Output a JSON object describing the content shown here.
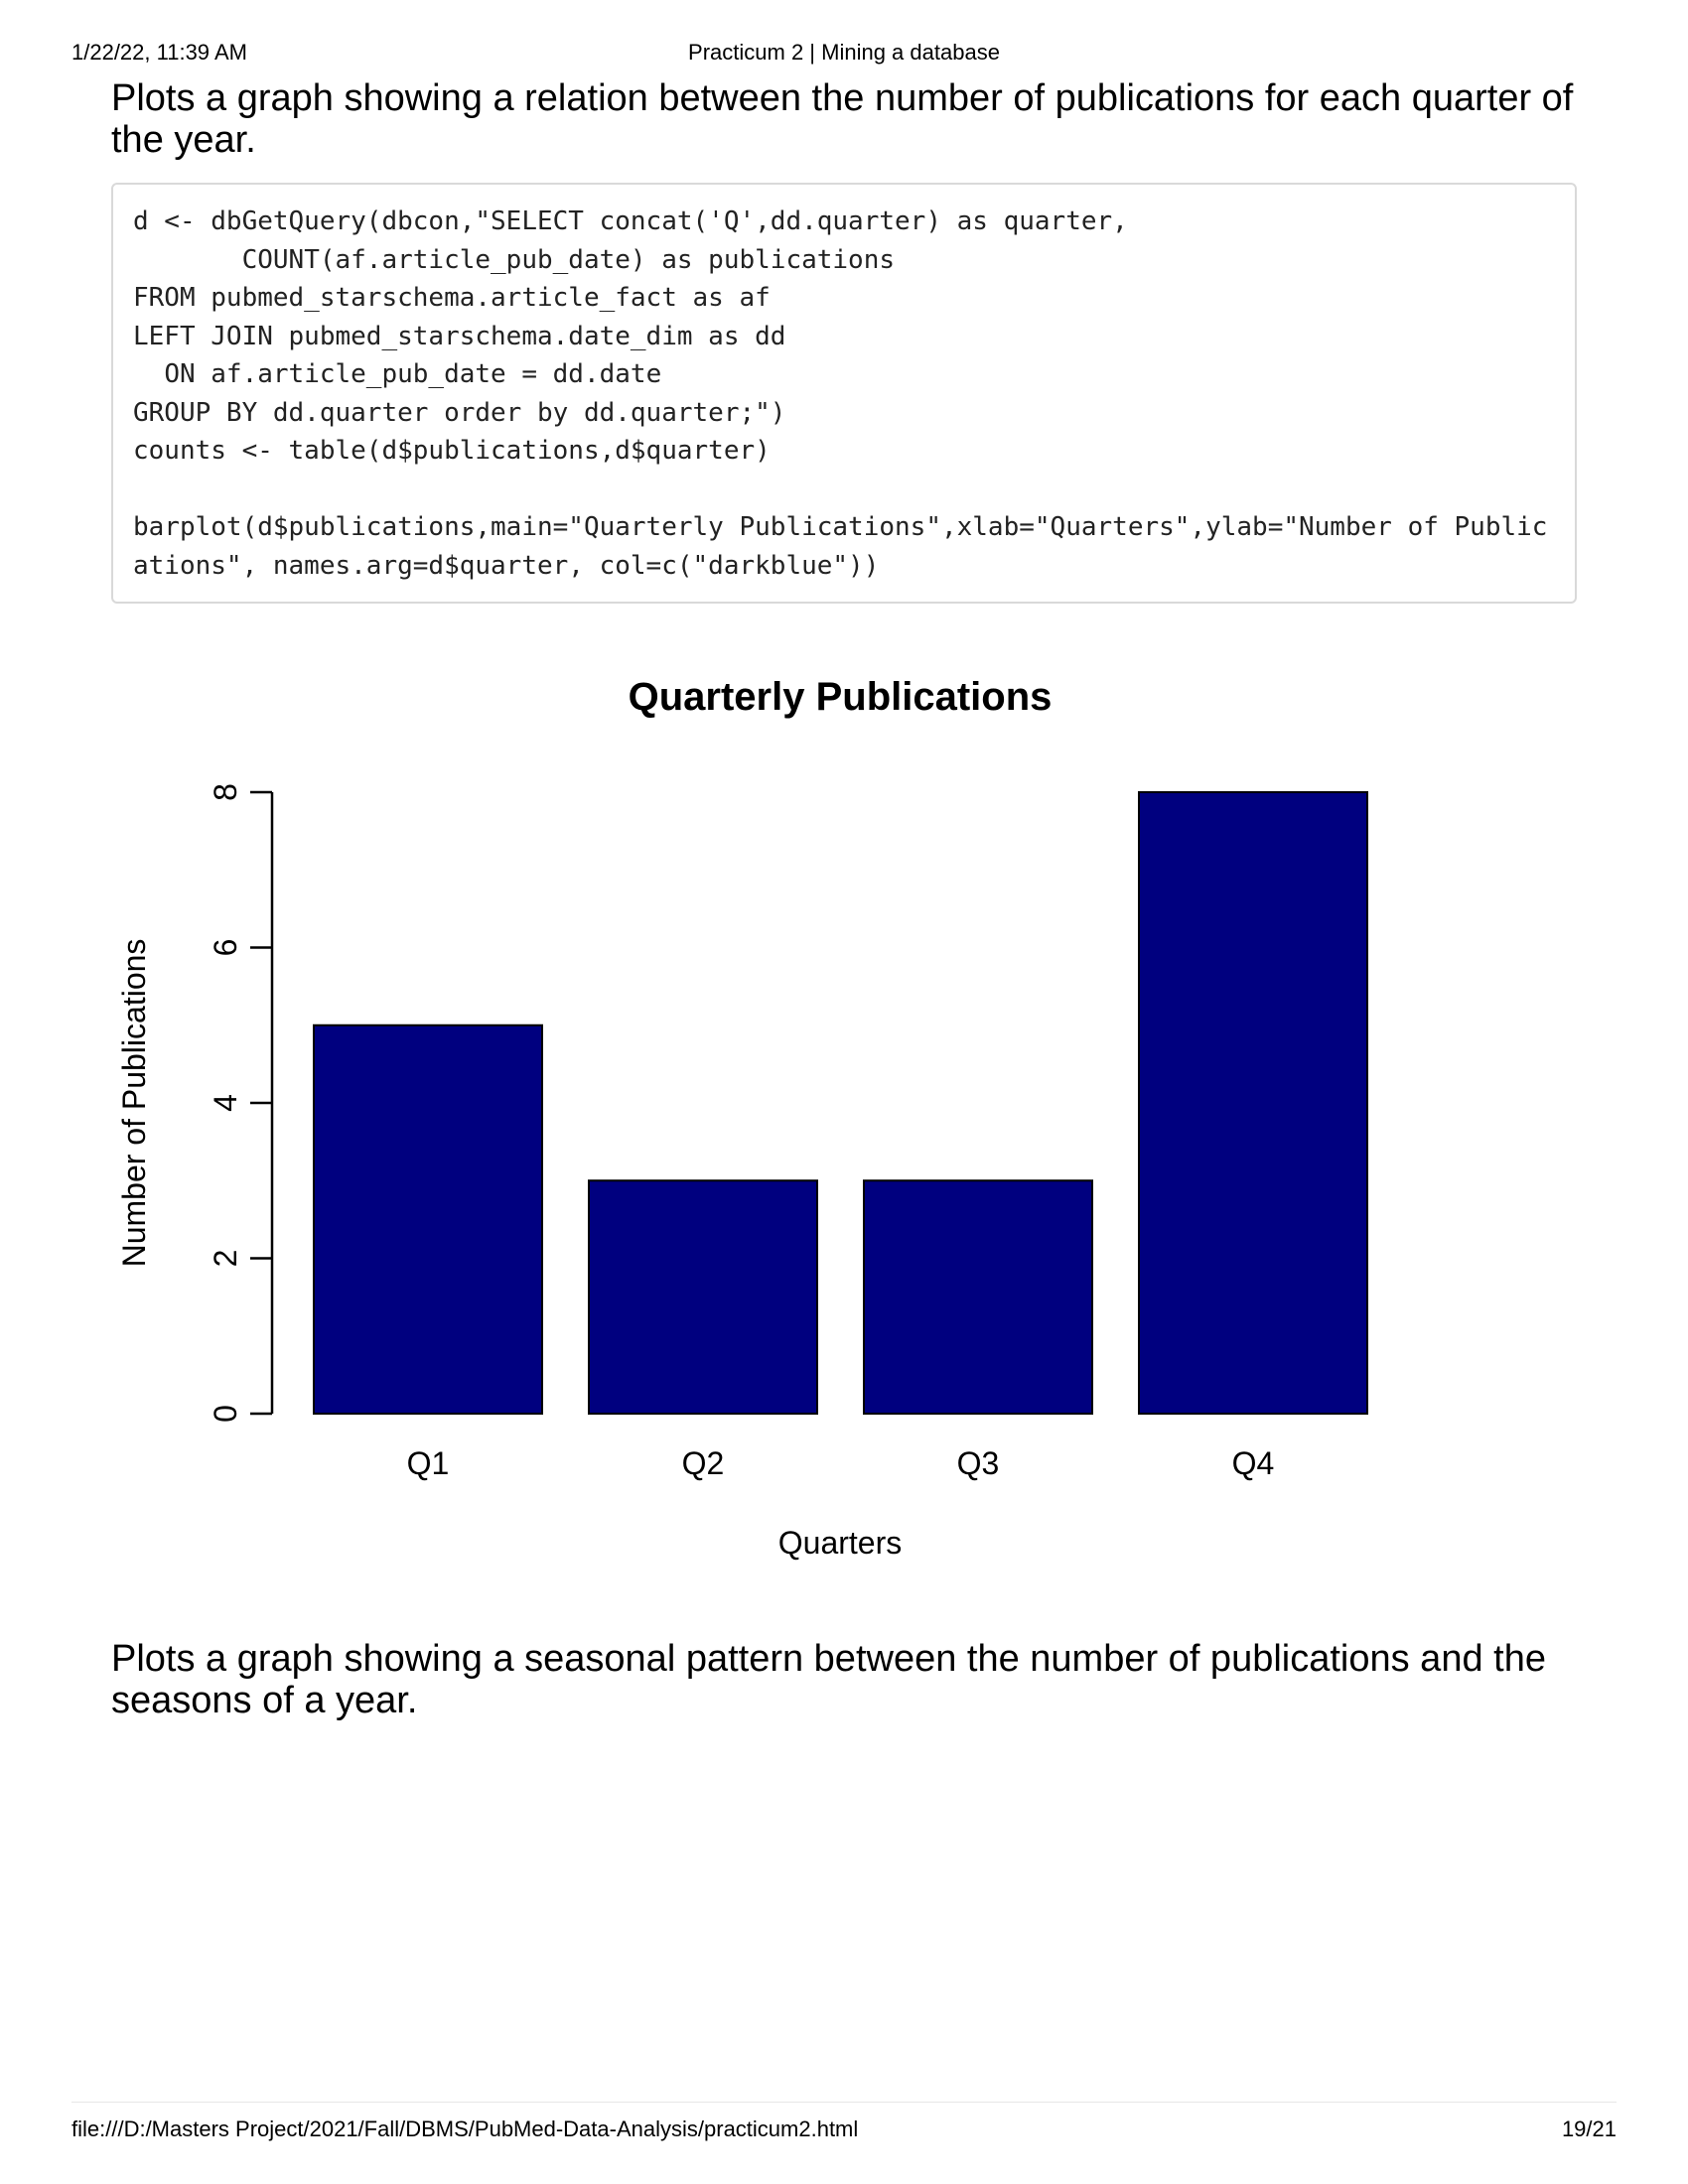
{
  "header": {
    "datetime": "1/22/22, 11:39 AM",
    "doc_title": "Practicum 2 | Mining a database"
  },
  "content": {
    "intro_paragraph": "Plots a graph showing a relation between the number of publications for each quarter of the year.",
    "code": "d <- dbGetQuery(dbcon,\"SELECT concat('Q',dd.quarter) as quarter,\n       COUNT(af.article_pub_date) as publications\nFROM pubmed_starschema.article_fact as af\nLEFT JOIN pubmed_starschema.date_dim as dd\n  ON af.article_pub_date = dd.date\nGROUP BY dd.quarter order by dd.quarter;\")\ncounts <- table(d$publications,d$quarter)\n\nbarplot(d$publications,main=\"Quarterly Publications\",xlab=\"Quarters\",ylab=\"Number of Publications\", names.arg=d$quarter, col=c(\"darkblue\"))",
    "next_paragraph": "Plots a graph showing a seasonal pattern between the number of publications and the seasons of a year."
  },
  "chart_data": {
    "type": "bar",
    "title": "Quarterly Publications",
    "xlabel": "Quarters",
    "ylabel": "Number of Publications",
    "categories": [
      "Q1",
      "Q2",
      "Q3",
      "Q4"
    ],
    "values": [
      5,
      3,
      3,
      8
    ],
    "ylim": [
      0,
      8
    ],
    "yticks": [
      "0",
      "2",
      "4",
      "6",
      "8"
    ],
    "bar_color": "#00007f",
    "grid": false,
    "legend": "none"
  },
  "footer": {
    "file_path": "file:///D:/Masters Project/2021/Fall/DBMS/PubMed-Data-Analysis/practicum2.html",
    "page_number": "19/21"
  }
}
